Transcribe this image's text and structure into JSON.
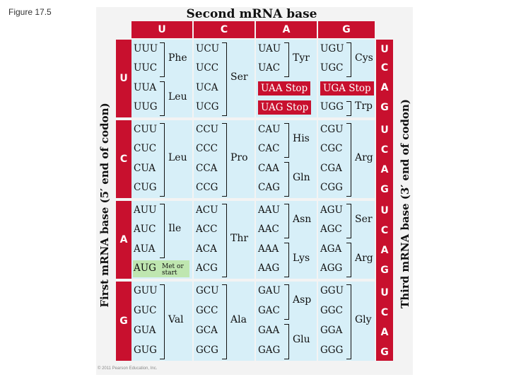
{
  "figure_label": "Figure 17.5",
  "title": "Second mRNA base",
  "first_base_label": "First mRNA base (5′ end of codon)",
  "third_base_label": "Third mRNA base (3′ end of codon)",
  "second_bases": [
    "U",
    "C",
    "A",
    "G"
  ],
  "first_bases": [
    "U",
    "C",
    "A",
    "G"
  ],
  "third_bases": [
    "U",
    "C",
    "A",
    "G",
    "U",
    "C",
    "A",
    "G",
    "U",
    "C",
    "A",
    "G",
    "U",
    "C",
    "A",
    "G"
  ],
  "blocks": {
    "U": {
      "U": {
        "codons": [
          "UUU",
          "UUC",
          "UUA",
          "UUG"
        ],
        "aa": [
          "Phe",
          "Leu"
        ]
      },
      "C": {
        "codons": [
          "UCU",
          "UCC",
          "UCA",
          "UCG"
        ],
        "aa": [
          "Ser"
        ]
      },
      "A": {
        "codons": [
          "UAU",
          "UAC",
          "UAA Stop",
          "UAG Stop"
        ],
        "aa": [
          "Tyr"
        ]
      },
      "G": {
        "codons": [
          "UGU",
          "UGC",
          "UGA Stop",
          "UGG"
        ],
        "aa": [
          "Cys",
          "Trp"
        ]
      }
    },
    "C": {
      "U": {
        "codons": [
          "CUU",
          "CUC",
          "CUA",
          "CUG"
        ],
        "aa": [
          "Leu"
        ]
      },
      "C": {
        "codons": [
          "CCU",
          "CCC",
          "CCA",
          "CCG"
        ],
        "aa": [
          "Pro"
        ]
      },
      "A": {
        "codons": [
          "CAU",
          "CAC",
          "CAA",
          "CAG"
        ],
        "aa": [
          "His",
          "Gln"
        ]
      },
      "G": {
        "codons": [
          "CGU",
          "CGC",
          "CGA",
          "CGG"
        ],
        "aa": [
          "Arg"
        ]
      }
    },
    "A": {
      "U": {
        "codons": [
          "AUU",
          "AUC",
          "AUA",
          "AUG"
        ],
        "aa": [
          "Ile"
        ],
        "start_label": "Met or start"
      },
      "C": {
        "codons": [
          "ACU",
          "ACC",
          "ACA",
          "ACG"
        ],
        "aa": [
          "Thr"
        ]
      },
      "A": {
        "codons": [
          "AAU",
          "AAC",
          "AAA",
          "AAG"
        ],
        "aa": [
          "Asn",
          "Lys"
        ]
      },
      "G": {
        "codons": [
          "AGU",
          "AGC",
          "AGA",
          "AGG"
        ],
        "aa": [
          "Ser",
          "Arg"
        ]
      }
    },
    "G": {
      "U": {
        "codons": [
          "GUU",
          "GUC",
          "GUA",
          "GUG"
        ],
        "aa": [
          "Val"
        ]
      },
      "C": {
        "codons": [
          "GCU",
          "GCC",
          "GCA",
          "GCG"
        ],
        "aa": [
          "Ala"
        ]
      },
      "A": {
        "codons": [
          "GAU",
          "GAC",
          "GAA",
          "GAG"
        ],
        "aa": [
          "Asp",
          "Glu"
        ]
      },
      "G": {
        "codons": [
          "GGU",
          "GGC",
          "GGA",
          "GGG"
        ],
        "aa": [
          "Gly"
        ]
      }
    }
  },
  "copyright": "© 2011 Pearson Education, Inc.",
  "colors": {
    "header_red": "#c8102e",
    "cell_blue": "#d7eff8",
    "start_green": "#bfe6b0"
  }
}
